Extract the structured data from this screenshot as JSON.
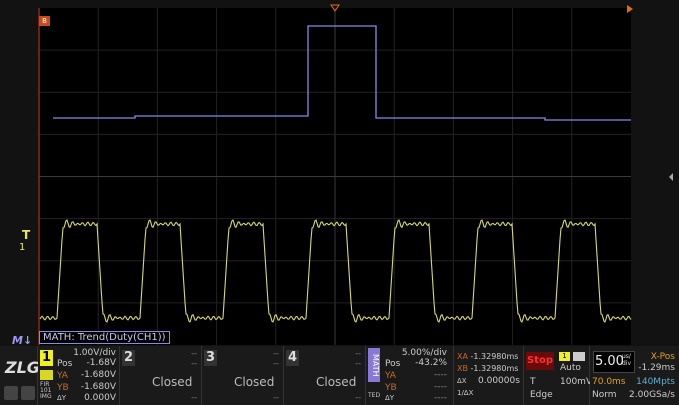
{
  "screen": {
    "math_marker": "B",
    "trigger_marker": "T",
    "trigger_channel": "1",
    "math_label": "M"
  },
  "math_info": "MATH: Trend(Duty(CH1))",
  "ch1": {
    "num": "1",
    "scale": "1.00V/div",
    "pos_label": "Pos",
    "pos": "-1.68V",
    "ya_label": "YA",
    "ya": "-1.680V",
    "yb_label": "YB",
    "yb": "-1.680V",
    "dy_label": "ΔY",
    "dy": "0.000V",
    "filters": [
      "FIR",
      "101",
      "IMG"
    ]
  },
  "ch2": {
    "num": "2",
    "status": "Closed",
    "dash": "--"
  },
  "ch3": {
    "num": "3",
    "status": "Closed",
    "dash": "--"
  },
  "ch4": {
    "num": "4",
    "status": "Closed",
    "dash": "--"
  },
  "math": {
    "tab": "MATH",
    "sub": "TED",
    "scale": "5.00%/div",
    "pos_label": "Pos",
    "pos": "-43.2%",
    "ya_label": "YA",
    "yb_label": "YB",
    "dy_label": "ΔY",
    "empty": "----"
  },
  "cursor": {
    "xa_label": "XA",
    "xa": "-1.32980ms",
    "xb_label": "XB",
    "xb": "-1.32980ms",
    "dx_label": "ΔX",
    "dx": "0.00000s",
    "inv_label": "1/ΔX"
  },
  "run": {
    "state": "Stop",
    "trig_src": "1",
    "mode": "Auto",
    "trig_label": "T",
    "level": "100mV",
    "type": "Edge"
  },
  "time": {
    "scale": "5.00",
    "unit_top": "us/",
    "unit_bot": "div",
    "xpos_label": "X-Pos",
    "xpos": "-1.29ms",
    "delay": "70.0ms",
    "mem": "140Mpts",
    "acq": "Norm",
    "rate": "2.00GSa/s"
  },
  "colors": {
    "ch1": "#e8e85a",
    "math": "#8a88e8",
    "stop": "#e02020",
    "accent": "#e86a10"
  }
}
